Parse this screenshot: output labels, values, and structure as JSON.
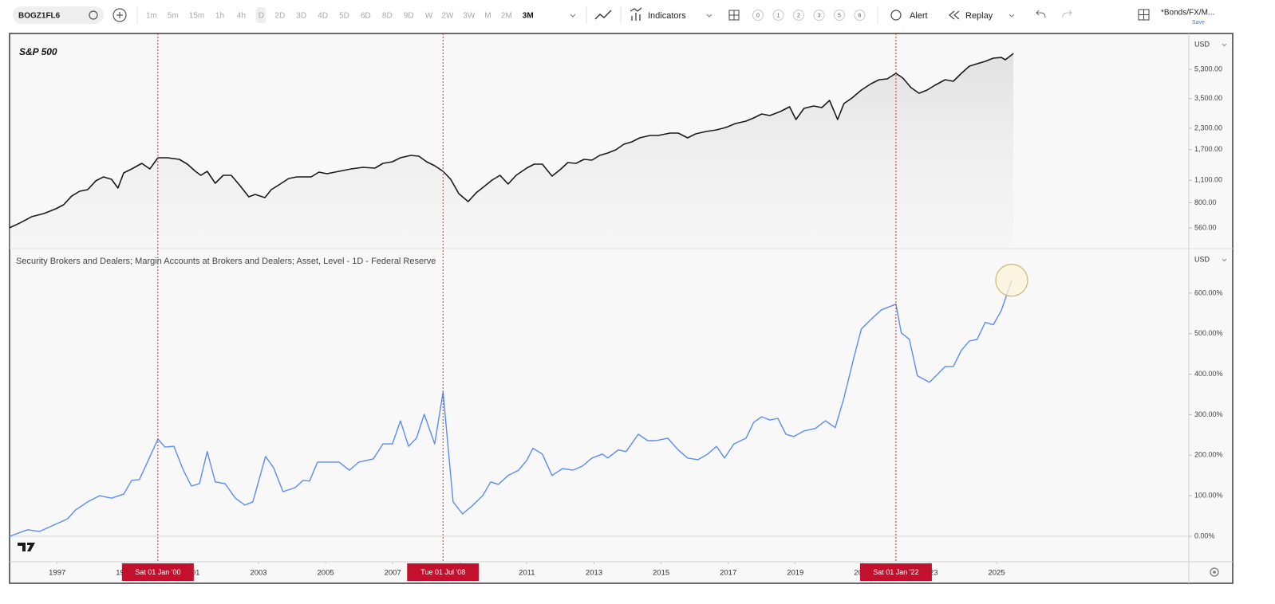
{
  "toolbar": {
    "symbol": "BOGZ1FL6",
    "intervals": [
      "1m",
      "5m",
      "15m",
      "1h",
      "4h",
      "D",
      "2D",
      "3D",
      "4D",
      "5D",
      "6D",
      "8D",
      "9D",
      "W",
      "2W",
      "3W",
      "M",
      "2M",
      "3M"
    ],
    "indicators": "Indicators",
    "layouts": [
      "0",
      "1",
      "2",
      "3",
      "5",
      "6"
    ],
    "alert": "Alert",
    "replay": "Replay",
    "layout_name": "*Bonds/FX/M...",
    "save": "Save"
  },
  "chart_data": [
    {
      "type": "area",
      "title": "S&P 500",
      "unit": "USD",
      "color": "#1a1a1a",
      "log_scale": true,
      "xlim": [
        1995.58,
        2030.73
      ],
      "ylim": [
        418,
        8812
      ],
      "yticks": [
        {
          "value": 5300,
          "label": "5,300.00"
        },
        {
          "value": 3500,
          "label": "3,500.00"
        },
        {
          "value": 2300,
          "label": "2,300.00"
        },
        {
          "value": 1700,
          "label": "1,700.00"
        },
        {
          "value": 1100,
          "label": "1,100.00"
        },
        {
          "value": 800,
          "label": "800.00"
        },
        {
          "value": 560,
          "label": "560.00"
        }
      ],
      "x": [
        1995.58,
        1995.89,
        1996.24,
        1996.6,
        1996.96,
        1997.19,
        1997.43,
        1997.67,
        1997.91,
        1998.15,
        1998.38,
        1998.62,
        1998.81,
        1998.98,
        1999.22,
        1999.52,
        1999.76,
        2000.0,
        2000.29,
        2000.64,
        2000.88,
        2001.12,
        2001.28,
        2001.47,
        2001.71,
        2001.95,
        2002.19,
        2002.43,
        2002.71,
        2002.9,
        2003.19,
        2003.38,
        2003.61,
        2003.9,
        2004.14,
        2004.57,
        2004.8,
        2005.04,
        2005.4,
        2005.76,
        2006.11,
        2006.47,
        2006.71,
        2006.99,
        2007.23,
        2007.54,
        2007.78,
        2008.01,
        2008.25,
        2008.5,
        2008.73,
        2008.97,
        2009.25,
        2009.49,
        2009.73,
        2009.96,
        2010.2,
        2010.44,
        2010.68,
        2010.99,
        2011.22,
        2011.46,
        2011.75,
        2011.99,
        2012.22,
        2012.46,
        2012.7,
        2012.94,
        2013.17,
        2013.41,
        2013.65,
        2013.89,
        2014.13,
        2014.36,
        2014.67,
        2014.91,
        2015.27,
        2015.51,
        2015.79,
        2016.03,
        2016.34,
        2016.65,
        2016.93,
        2017.22,
        2017.53,
        2017.76,
        2018.0,
        2018.24,
        2018.55,
        2018.83,
        2019.02,
        2019.26,
        2019.55,
        2019.79,
        2020.02,
        2020.26,
        2020.45,
        2020.69,
        2020.97,
        2021.26,
        2021.5,
        2021.74,
        2022.0,
        2022.21,
        2022.45,
        2022.69,
        2022.93,
        2023.16,
        2023.47,
        2023.71,
        2023.95,
        2024.19,
        2024.42,
        2024.66,
        2024.9,
        2025.14,
        2025.26,
        2025.5
      ],
      "values": [
        561,
        601,
        657,
        687,
        735,
        778,
        880,
        942,
        964,
        1092,
        1155,
        1116,
        986,
        1222,
        1293,
        1399,
        1293,
        1514,
        1514,
        1481,
        1384,
        1250,
        1181,
        1250,
        1055,
        1181,
        1181,
        1031,
        871,
        901,
        861,
        964,
        1031,
        1129,
        1155,
        1155,
        1236,
        1208,
        1250,
        1293,
        1323,
        1307,
        1399,
        1431,
        1514,
        1566,
        1549,
        1431,
        1352,
        1250,
        1116,
        911,
        814,
        922,
        1009,
        1104,
        1181,
        1044,
        1181,
        1307,
        1384,
        1384,
        1168,
        1278,
        1415,
        1399,
        1481,
        1464,
        1566,
        1620,
        1695,
        1834,
        1898,
        2008,
        2077,
        2077,
        2149,
        2149,
        2008,
        2125,
        2198,
        2247,
        2325,
        2461,
        2544,
        2663,
        2817,
        2753,
        2914,
        3120,
        2603,
        3049,
        3154,
        3082,
        3413,
        2603,
        3263,
        3531,
        3953,
        4326,
        4576,
        4630,
        5010,
        4682,
        4087,
        3777,
        3953,
        4228,
        4576,
        4476,
        5010,
        5544,
        5736,
        5934,
        6208,
        6276,
        6068,
        6641
      ]
    },
    {
      "type": "line",
      "title": "Security Brokers and Dealers; Margin Accounts at Brokers and Dealers; Asset, Level - 1D - Federal Reserve",
      "unit": "USD",
      "color": "#5b8def",
      "xlim": [
        1995.58,
        2030.73
      ],
      "ylim": [
        -63,
        710
      ],
      "yticks": [
        {
          "value": 600,
          "label": "600.00%"
        },
        {
          "value": 500,
          "label": "500.00%"
        },
        {
          "value": 400,
          "label": "400.00%"
        },
        {
          "value": 300,
          "label": "300.00%"
        },
        {
          "value": 200,
          "label": "200.00%"
        },
        {
          "value": 100,
          "label": "100.00%"
        },
        {
          "value": 0,
          "label": "0.00%"
        }
      ],
      "xticks": [
        1997,
        1999,
        2001,
        2003,
        2005,
        2007,
        2009,
        2011,
        2013,
        2015,
        2017,
        2019,
        2021,
        2023,
        2025
      ],
      "crosshairs": [
        {
          "x": 2000.0,
          "label": "Sat 01 Jan '00"
        },
        {
          "x": 2008.5,
          "label": "Tue 01 Jul '08"
        },
        {
          "x": 2022.0,
          "label": "Sat 01 Jan '22"
        }
      ],
      "x": [
        1995.58,
        1996.12,
        1996.48,
        1996.96,
        1997.31,
        1997.55,
        1997.91,
        1998.26,
        1998.62,
        1998.98,
        1999.22,
        1999.45,
        1999.69,
        2000.0,
        2000.21,
        2000.48,
        2000.76,
        2001.0,
        2001.24,
        2001.47,
        2001.71,
        2002.0,
        2002.31,
        2002.59,
        2002.83,
        2003.21,
        2003.45,
        2003.73,
        2004.09,
        2004.33,
        2004.52,
        2004.76,
        2005.04,
        2005.4,
        2005.71,
        2005.99,
        2006.42,
        2006.71,
        2006.99,
        2007.23,
        2007.47,
        2007.71,
        2007.94,
        2008.25,
        2008.5,
        2008.8,
        2009.08,
        2009.37,
        2009.68,
        2009.92,
        2010.15,
        2010.44,
        2010.75,
        2010.99,
        2011.18,
        2011.46,
        2011.75,
        2012.06,
        2012.37,
        2012.65,
        2012.94,
        2013.25,
        2013.41,
        2013.72,
        2013.96,
        2014.32,
        2014.6,
        2014.84,
        2015.2,
        2015.51,
        2015.79,
        2016.1,
        2016.39,
        2016.65,
        2016.89,
        2017.17,
        2017.53,
        2017.76,
        2018.0,
        2018.24,
        2018.48,
        2018.72,
        2018.95,
        2019.26,
        2019.6,
        2019.9,
        2020.19,
        2020.45,
        2020.74,
        2020.97,
        2021.33,
        2021.57,
        2022.0,
        2022.16,
        2022.4,
        2022.64,
        2023.0,
        2023.24,
        2023.47,
        2023.71,
        2023.95,
        2024.19,
        2024.42,
        2024.66,
        2024.9,
        2025.14,
        2025.45
      ],
      "values": [
        0,
        16,
        12,
        30,
        43,
        65,
        85,
        100,
        94,
        104,
        138,
        140,
        183,
        240,
        220,
        222,
        163,
        124,
        130,
        209,
        134,
        130,
        94,
        77,
        85,
        197,
        169,
        110,
        120,
        138,
        136,
        183,
        183,
        183,
        163,
        183,
        191,
        228,
        228,
        285,
        222,
        242,
        301,
        228,
        356,
        85,
        55,
        75,
        100,
        134,
        128,
        150,
        163,
        187,
        217,
        203,
        150,
        167,
        163,
        173,
        193,
        203,
        193,
        213,
        209,
        252,
        236,
        236,
        242,
        213,
        193,
        189,
        203,
        222,
        193,
        228,
        242,
        281,
        295,
        287,
        291,
        252,
        246,
        260,
        266,
        285,
        268,
        341,
        439,
        512,
        541,
        559,
        573,
        502,
        486,
        396,
        380,
        400,
        419,
        419,
        459,
        482,
        486,
        528,
        522,
        557,
        632
      ]
    }
  ]
}
